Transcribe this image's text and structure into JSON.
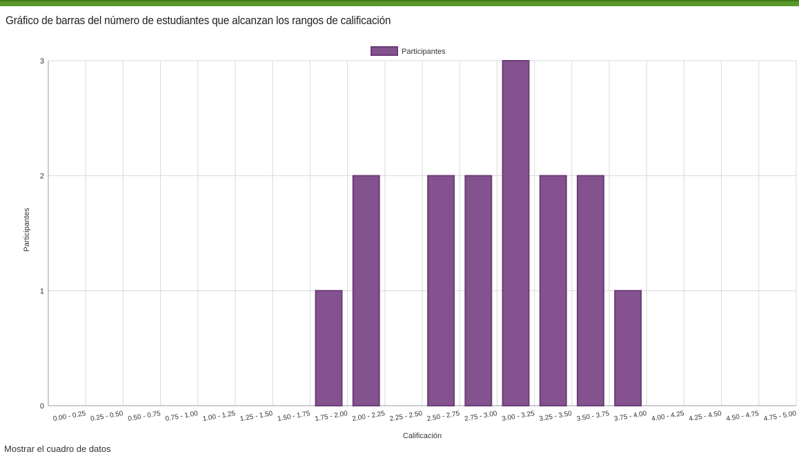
{
  "page": {
    "title": "Gráfico de barras del número de estudiantes que alcanzan los rangos de calificación",
    "footer_link": "Mostrar el cuadro de datos"
  },
  "colors": {
    "bar_fill": "#84528f",
    "bar_stroke": "#6b3d76",
    "top_bar": "#5a9a2a",
    "grid": "#d9d9d9"
  },
  "chart_data": {
    "type": "bar",
    "title": "Gráfico de barras del número de estudiantes que alcanzan los rangos de calificación",
    "xlabel": "Calificación",
    "ylabel": "Participantes",
    "legend": {
      "entries": [
        "Participantes"
      ],
      "position": "top-center"
    },
    "grid": true,
    "ylim": [
      0,
      3
    ],
    "yticks": [
      "0",
      "1",
      "2",
      "3"
    ],
    "categories": [
      "0.00 - 0.25",
      "0.25 - 0.50",
      "0.50 - 0.75",
      "0.75 - 1.00",
      "1.00 - 1.25",
      "1.25 - 1.50",
      "1.50 - 1.75",
      "1.75 - 2.00",
      "2.00 - 2.25",
      "2.25 - 2.50",
      "2.50 - 2.75",
      "2.75 - 3.00",
      "3.00 - 3.25",
      "3.25 - 3.50",
      "3.50 - 3.75",
      "3.75 - 4.00",
      "4.00 - 4.25",
      "4.25 - 4.50",
      "4.50 - 4.75",
      "4.75 - 5.00"
    ],
    "series": [
      {
        "name": "Participantes",
        "values": [
          0,
          0,
          0,
          0,
          0,
          0,
          0,
          1,
          2,
          0,
          2,
          2,
          3,
          2,
          2,
          1,
          0,
          0,
          0,
          0
        ]
      }
    ]
  }
}
